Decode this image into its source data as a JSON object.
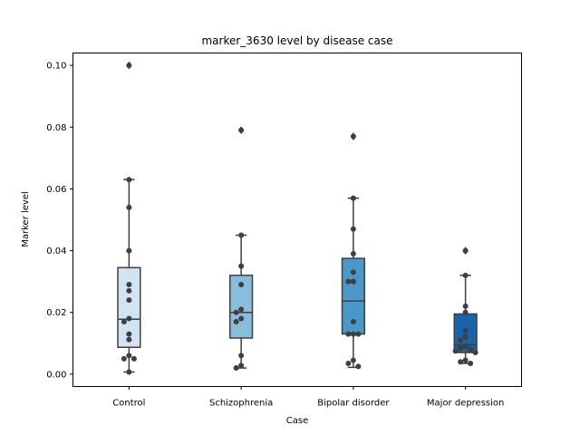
{
  "chart_data": {
    "type": "box",
    "title": "marker_3630 level by disease case",
    "xlabel": "Case",
    "ylabel": "Marker level",
    "ylim": [
      -0.004,
      0.104
    ],
    "yticks": [
      0.0,
      0.02,
      0.04,
      0.06,
      0.08,
      0.1
    ],
    "ytick_labels": [
      "0.00",
      "0.02",
      "0.04",
      "0.06",
      "0.08",
      "0.10"
    ],
    "categories": [
      "Control",
      "Schizophrenia",
      "Bipolar disorder",
      "Major depression"
    ],
    "colors": [
      "#d2e3f3",
      "#88bedc",
      "#4a98c9",
      "#1764ab"
    ],
    "boxes": [
      {
        "category": "Control",
        "q1": 0.0087,
        "median": 0.0178,
        "q3": 0.0345,
        "whisker_low": 0.0007,
        "whisker_high": 0.063,
        "outliers": [
          0.1
        ],
        "points": [
          0.1,
          0.063,
          0.054,
          0.04,
          0.029,
          0.027,
          0.024,
          0.018,
          0.017,
          0.013,
          0.0112,
          0.006,
          0.005,
          0.005,
          0.0007
        ]
      },
      {
        "category": "Schizophrenia",
        "q1": 0.0117,
        "median": 0.02,
        "q3": 0.032,
        "whisker_low": 0.002,
        "whisker_high": 0.045,
        "outliers": [
          0.079
        ],
        "points": [
          0.079,
          0.045,
          0.035,
          0.029,
          0.021,
          0.02,
          0.018,
          0.017,
          0.006,
          0.0028,
          0.002
        ]
      },
      {
        "category": "Bipolar disorder",
        "q1": 0.013,
        "median": 0.0237,
        "q3": 0.0375,
        "whisker_low": 0.0022,
        "whisker_high": 0.057,
        "outliers": [
          0.077
        ],
        "points": [
          0.077,
          0.057,
          0.047,
          0.039,
          0.033,
          0.03,
          0.03,
          0.017,
          0.013,
          0.013,
          0.013,
          0.0045,
          0.0035,
          0.0025
        ]
      },
      {
        "category": "Major depression",
        "q1": 0.007,
        "median": 0.0095,
        "q3": 0.0195,
        "whisker_low": 0.0035,
        "whisker_high": 0.032,
        "outliers": [
          0.04
        ],
        "points": [
          0.04,
          0.032,
          0.022,
          0.02,
          0.014,
          0.012,
          0.011,
          0.009,
          0.0085,
          0.008,
          0.0075,
          0.007,
          0.0045,
          0.004,
          0.0035
        ]
      }
    ],
    "grid": false,
    "legend": "none"
  }
}
